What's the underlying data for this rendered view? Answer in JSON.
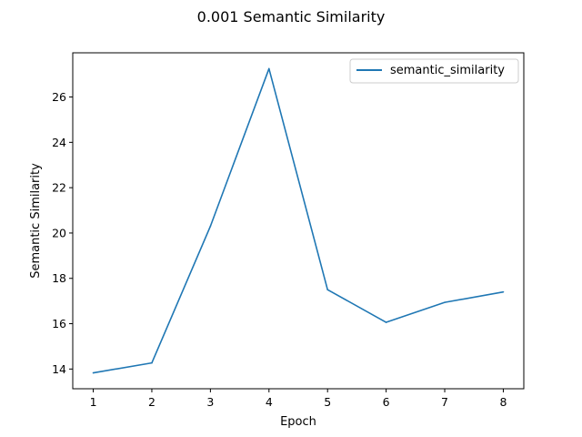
{
  "chart_data": {
    "type": "line",
    "title": "0.001 Semantic Similarity",
    "xlabel": "Epoch",
    "ylabel": "Semantic Similarity",
    "x": [
      1,
      2,
      3,
      4,
      5,
      6,
      7,
      8
    ],
    "series": [
      {
        "name": "semantic_similarity",
        "color": "#1f77b4",
        "values": [
          13.83,
          14.27,
          20.3,
          27.25,
          17.5,
          16.06,
          16.94,
          17.4
        ]
      }
    ],
    "xlim": [
      0.65,
      8.35
    ],
    "ylim": [
      13.13,
      27.95
    ],
    "xticks": [
      "1",
      "2",
      "3",
      "4",
      "5",
      "6",
      "7",
      "8"
    ],
    "yticks": [
      "14",
      "16",
      "18",
      "20",
      "22",
      "24",
      "26"
    ],
    "grid": false,
    "legend": "top-right"
  }
}
